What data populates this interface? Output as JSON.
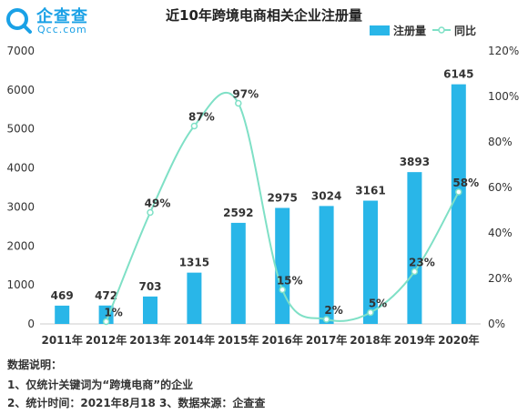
{
  "brand": {
    "name": "企查查",
    "url": "Qcc.com"
  },
  "notes": {
    "heading": "数据说明：",
    "line1": "1、仅统计关键词为“跨境电商”的企业",
    "line2": "2、统计时间：2021年8月18  3、数据来源：企查查"
  },
  "colors": {
    "bar": "#29b6e8",
    "line": "#7fe0c6",
    "text": "#333333"
  },
  "chart_data": {
    "type": "bar",
    "title": "近10年跨境电商相关企业注册量",
    "categories": [
      "2011年",
      "2012年",
      "2013年",
      "2014年",
      "2015年",
      "2016年",
      "2017年",
      "2018年",
      "2019年",
      "2020年"
    ],
    "series": [
      {
        "name": "注册量",
        "type": "bar",
        "axis": "left",
        "values": [
          469,
          472,
          703,
          1315,
          2592,
          2975,
          3024,
          3161,
          3893,
          6145
        ],
        "labels": [
          "469",
          "472",
          "703",
          "1315",
          "2592",
          "2975",
          "3024",
          "3161",
          "3893",
          "6145"
        ]
      },
      {
        "name": "同比",
        "type": "line",
        "axis": "right",
        "smooth": true,
        "values": [
          null,
          1,
          49,
          87,
          97,
          15,
          2,
          5,
          23,
          58
        ],
        "labels": [
          "",
          "1%",
          "49%",
          "87%",
          "97%",
          "15%",
          "2%",
          "5%",
          "23%",
          "58%"
        ]
      }
    ],
    "y_left": {
      "min": 0,
      "max": 7000,
      "ticks": [
        "0",
        "1000",
        "2000",
        "3000",
        "4000",
        "5000",
        "6000",
        "7000"
      ]
    },
    "y_right": {
      "min": 0,
      "max": 120,
      "ticks": [
        "0%",
        "20%",
        "40%",
        "60%",
        "80%",
        "100%",
        "120%"
      ]
    },
    "legend": "top-right",
    "grid": false
  }
}
